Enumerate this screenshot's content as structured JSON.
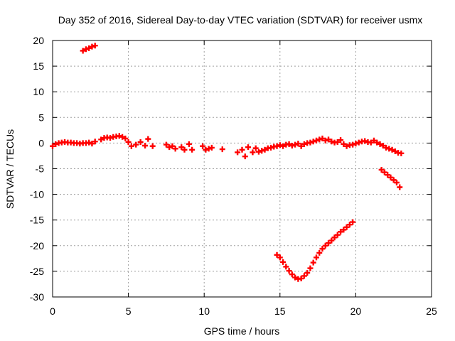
{
  "chart_data": {
    "type": "scatter",
    "title": "Day 352 of 2016, Sidereal Day-to-day VTEC variation (SDTVAR) for receiver usmx",
    "xlabel": "GPS time / hours",
    "ylabel": "SDTVAR / TECUs",
    "xlim": [
      0,
      25
    ],
    "ylim": [
      -30,
      20
    ],
    "xticks": [
      0,
      5,
      10,
      15,
      20,
      25
    ],
    "yticks": [
      20,
      15,
      10,
      5,
      0,
      -5,
      -10,
      -15,
      -20,
      -25,
      -30
    ],
    "grid": true,
    "marker": "plus",
    "color": "#ff0000",
    "series": [
      {
        "name": "SDTVAR",
        "points": [
          [
            0.0,
            -0.6
          ],
          [
            0.2,
            -0.2
          ],
          [
            0.4,
            0.0
          ],
          [
            0.6,
            0.1
          ],
          [
            0.8,
            0.2
          ],
          [
            1.0,
            0.1
          ],
          [
            1.2,
            0.1
          ],
          [
            1.4,
            0.0
          ],
          [
            1.6,
            0.0
          ],
          [
            1.8,
            -0.1
          ],
          [
            2.0,
            0.0
          ],
          [
            2.2,
            0.0
          ],
          [
            2.4,
            0.1
          ],
          [
            2.6,
            -0.1
          ],
          [
            2.8,
            0.3
          ],
          [
            2.0,
            18.0
          ],
          [
            2.2,
            18.3
          ],
          [
            2.4,
            18.5
          ],
          [
            2.6,
            18.8
          ],
          [
            2.8,
            19.0
          ],
          [
            3.2,
            0.7
          ],
          [
            3.4,
            1.0
          ],
          [
            3.6,
            1.1
          ],
          [
            3.8,
            1.0
          ],
          [
            4.0,
            1.2
          ],
          [
            4.2,
            1.3
          ],
          [
            4.4,
            1.4
          ],
          [
            4.6,
            1.2
          ],
          [
            4.8,
            0.9
          ],
          [
            5.0,
            0.2
          ],
          [
            5.2,
            -0.6
          ],
          [
            5.5,
            -0.3
          ],
          [
            5.8,
            0.2
          ],
          [
            6.1,
            -0.5
          ],
          [
            6.3,
            0.8
          ],
          [
            6.6,
            -0.6
          ],
          [
            7.5,
            -0.3
          ],
          [
            7.7,
            -0.8
          ],
          [
            7.9,
            -0.6
          ],
          [
            8.1,
            -1.1
          ],
          [
            8.5,
            -0.8
          ],
          [
            8.7,
            -1.3
          ],
          [
            9.0,
            -0.2
          ],
          [
            9.2,
            -1.3
          ],
          [
            9.9,
            -0.6
          ],
          [
            10.1,
            -1.3
          ],
          [
            10.3,
            -1.1
          ],
          [
            10.5,
            -0.9
          ],
          [
            11.2,
            -1.2
          ],
          [
            12.2,
            -1.8
          ],
          [
            12.5,
            -1.3
          ],
          [
            12.7,
            -2.6
          ],
          [
            12.9,
            -0.8
          ],
          [
            13.2,
            -1.8
          ],
          [
            13.4,
            -1.0
          ],
          [
            13.6,
            -1.7
          ],
          [
            13.8,
            -1.5
          ],
          [
            14.0,
            -1.3
          ],
          [
            14.2,
            -1.0
          ],
          [
            14.4,
            -0.9
          ],
          [
            14.6,
            -0.7
          ],
          [
            14.8,
            -0.6
          ],
          [
            15.0,
            -0.4
          ],
          [
            15.2,
            -0.6
          ],
          [
            15.4,
            -0.3
          ],
          [
            15.6,
            -0.2
          ],
          [
            15.8,
            -0.5
          ],
          [
            16.0,
            -0.3
          ],
          [
            16.2,
            -0.1
          ],
          [
            16.4,
            -0.6
          ],
          [
            16.6,
            -0.2
          ],
          [
            16.8,
            0.0
          ],
          [
            17.0,
            0.1
          ],
          [
            17.2,
            0.3
          ],
          [
            17.4,
            0.5
          ],
          [
            17.6,
            0.7
          ],
          [
            17.8,
            0.9
          ],
          [
            18.0,
            0.5
          ],
          [
            18.2,
            0.7
          ],
          [
            18.4,
            0.3
          ],
          [
            18.6,
            0.1
          ],
          [
            18.8,
            0.2
          ],
          [
            19.0,
            0.6
          ],
          [
            19.2,
            -0.2
          ],
          [
            19.4,
            -0.6
          ],
          [
            19.6,
            -0.4
          ],
          [
            19.8,
            -0.3
          ],
          [
            20.0,
            -0.1
          ],
          [
            20.2,
            0.1
          ],
          [
            20.4,
            0.3
          ],
          [
            20.6,
            0.4
          ],
          [
            20.8,
            0.2
          ],
          [
            21.0,
            0.1
          ],
          [
            21.2,
            0.5
          ],
          [
            21.4,
            0.1
          ],
          [
            21.6,
            -0.2
          ],
          [
            21.8,
            -0.5
          ],
          [
            22.0,
            -0.9
          ],
          [
            22.2,
            -1.1
          ],
          [
            22.4,
            -1.3
          ],
          [
            22.6,
            -1.6
          ],
          [
            22.8,
            -1.9
          ],
          [
            23.0,
            -2.0
          ],
          [
            21.7,
            -5.2
          ],
          [
            21.9,
            -5.7
          ],
          [
            22.1,
            -6.2
          ],
          [
            22.3,
            -6.7
          ],
          [
            22.5,
            -7.2
          ],
          [
            22.7,
            -7.7
          ],
          [
            22.9,
            -8.6
          ],
          [
            14.8,
            -21.8
          ],
          [
            15.0,
            -22.3
          ],
          [
            15.2,
            -23.2
          ],
          [
            15.4,
            -24.1
          ],
          [
            15.6,
            -24.9
          ],
          [
            15.8,
            -25.6
          ],
          [
            16.0,
            -26.2
          ],
          [
            16.2,
            -26.5
          ],
          [
            16.4,
            -26.4
          ],
          [
            16.6,
            -25.9
          ],
          [
            16.8,
            -25.3
          ],
          [
            17.0,
            -24.4
          ],
          [
            17.2,
            -23.3
          ],
          [
            17.4,
            -22.3
          ],
          [
            17.6,
            -21.4
          ],
          [
            17.8,
            -20.6
          ],
          [
            18.0,
            -20.0
          ],
          [
            18.2,
            -19.5
          ],
          [
            18.4,
            -19.0
          ],
          [
            18.6,
            -18.4
          ],
          [
            18.8,
            -17.9
          ],
          [
            19.0,
            -17.3
          ],
          [
            19.2,
            -16.9
          ],
          [
            19.4,
            -16.4
          ],
          [
            19.6,
            -15.9
          ],
          [
            19.8,
            -15.4
          ]
        ]
      }
    ]
  }
}
